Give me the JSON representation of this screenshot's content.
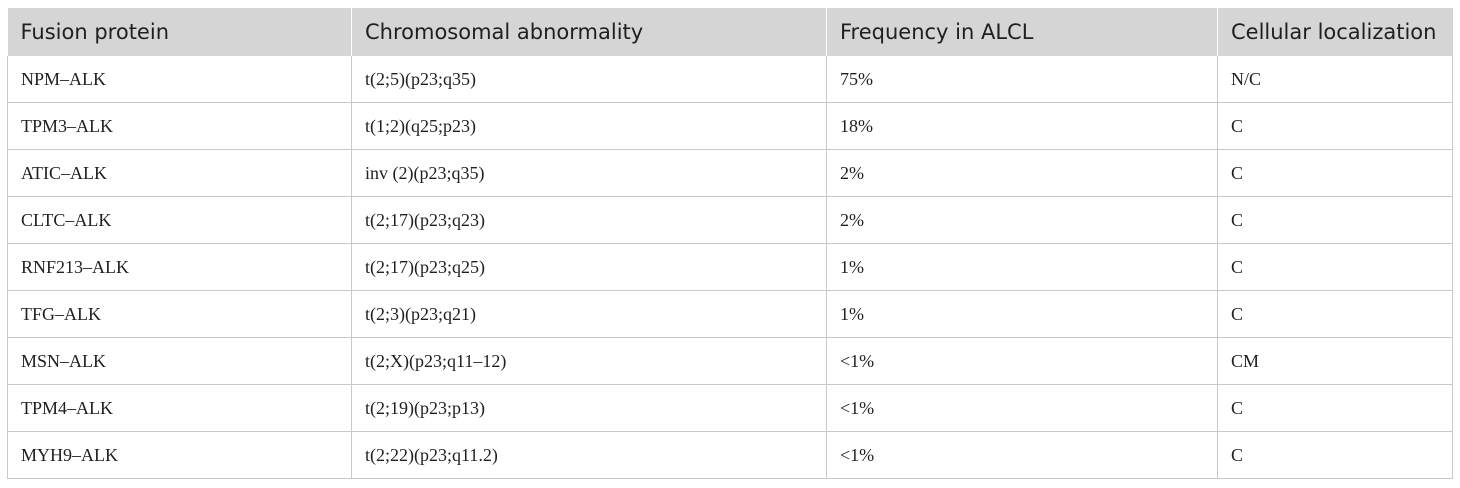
{
  "table": {
    "headers": [
      "Fusion protein",
      "Chromosomal abnormality",
      "Frequency in ALCL",
      "Cellular localization"
    ],
    "rows": [
      [
        "NPM–ALK",
        "t(2;5)(p23;q35)",
        "75%",
        "N/C"
      ],
      [
        "TPM3–ALK",
        "t(1;2)(q25;p23)",
        "18%",
        "C"
      ],
      [
        "ATIC–ALK",
        "inv (2)(p23;q35)",
        "2%",
        "C"
      ],
      [
        "CLTC–ALK",
        "t(2;17)(p23;q23)",
        "2%",
        "C"
      ],
      [
        "RNF213–ALK",
        "t(2;17)(p23;q25)",
        "1%",
        "C"
      ],
      [
        "TFG–ALK",
        "t(2;3)(p23;q21)",
        "1%",
        "C"
      ],
      [
        "MSN–ALK",
        "t(2;X)(p23;q11–12)",
        "<1%",
        "CM"
      ],
      [
        "TPM4–ALK",
        "t(2;19)(p23;p13)",
        "<1%",
        "C"
      ],
      [
        "MYH9–ALK",
        "t(2;22)(p23;q11.2)",
        "<1%",
        "C"
      ]
    ]
  }
}
